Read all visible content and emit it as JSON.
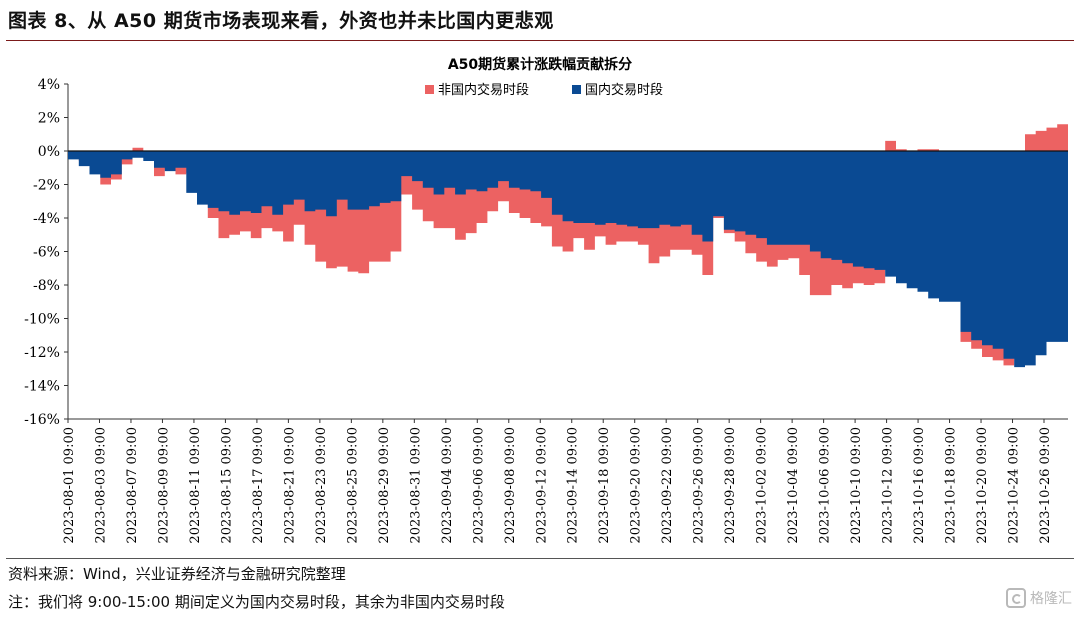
{
  "figure_title": "图表 8、从 A50 期货市场表现来看，外资也并未比国内更悲观",
  "source_note": "资料来源：Wind，兴业证券经济与金融研究院整理",
  "definition_note": "注：我们将 9:00-15:00 期间定义为国内交易时段，其余为非国内交易时段",
  "watermark": "格隆汇",
  "colors": {
    "non_domestic": "#ec6262",
    "domestic": "#0a4a93",
    "title_rule": "#7b1a1a"
  },
  "chart_data": {
    "type": "area",
    "title": "A50期货累计涨跌幅贡献拆分",
    "legend_position": "top-center",
    "ylim": [
      -16,
      4
    ],
    "yticks": [
      4,
      2,
      0,
      -2,
      -4,
      -6,
      -8,
      -10,
      -12,
      -14,
      -16
    ],
    "ytick_labels": [
      "4%",
      "2%",
      "0%",
      "-2%",
      "-4%",
      "-6%",
      "-8%",
      "-10%",
      "-12%",
      "-14%",
      "-16%"
    ],
    "xtick_labels": [
      "2023-08-01 09:00",
      "2023-08-03 09:00",
      "2023-08-07 09:00",
      "2023-08-09 09:00",
      "2023-08-11 09:00",
      "2023-08-15 09:00",
      "2023-08-17 09:00",
      "2023-08-21 09:00",
      "2023-08-23 09:00",
      "2023-08-25 09:00",
      "2023-08-29 09:00",
      "2023-08-31 09:00",
      "2023-09-04 09:00",
      "2023-09-06 09:00",
      "2023-09-08 09:00",
      "2023-09-12 09:00",
      "2023-09-14 09:00",
      "2023-09-18 09:00",
      "2023-09-20 09:00",
      "2023-09-22 09:00",
      "2023-09-26 09:00",
      "2023-09-28 09:00",
      "2023-10-02 09:00",
      "2023-10-04 09:00",
      "2023-10-06 09:00",
      "2023-10-10 09:00",
      "2023-10-12 09:00",
      "2023-10-16 09:00",
      "2023-10-18 09:00",
      "2023-10-20 09:00",
      "2023-10-24 09:00",
      "2023-10-26 09:00"
    ],
    "series": [
      {
        "name": "非国内交易时段",
        "values": [
          -0.3,
          -0.6,
          -1.2,
          -2.0,
          -1.7,
          -0.8,
          0.2,
          -0.4,
          -1.5,
          -1.1,
          -1.4,
          -1.3,
          -2.7,
          -4.0,
          -5.2,
          -5.0,
          -4.8,
          -5.2,
          -4.6,
          -4.8,
          -5.4,
          -4.4,
          -5.6,
          -6.6,
          -7.0,
          -6.9,
          -7.2,
          -7.3,
          -6.6,
          -6.6,
          -6.0,
          -2.6,
          -3.5,
          -4.2,
          -4.6,
          -4.6,
          -5.3,
          -4.9,
          -4.3,
          -3.6,
          -3.0,
          -3.7,
          -4.0,
          -4.3,
          -4.5,
          -5.7,
          -6.0,
          -5.2,
          -5.9,
          -5.1,
          -5.6,
          -5.4,
          -5.4,
          -5.6,
          -6.7,
          -6.3,
          -5.9,
          -5.9,
          -6.2,
          -7.4,
          -4.0,
          -4.9,
          -5.4,
          -6.1,
          -6.6,
          -6.9,
          -6.5,
          -6.4,
          -7.4,
          -8.6,
          -8.6,
          -8.0,
          -8.2,
          -7.9,
          -8.0,
          -7.9,
          0.6,
          0.1,
          0.0,
          0.1,
          0.1,
          -0.3,
          -0.4,
          -11.4,
          -11.8,
          -12.3,
          -12.5,
          -12.8,
          -12.0,
          1.0,
          1.2,
          1.4,
          1.6
        ],
        "color": "#ec6262"
      },
      {
        "name": "国内交易时段",
        "values": [
          -0.5,
          -0.9,
          -1.4,
          -1.6,
          -1.4,
          -0.5,
          -0.4,
          -0.6,
          -1.0,
          -1.2,
          -1.0,
          -2.5,
          -3.2,
          -3.4,
          -3.6,
          -3.8,
          -3.6,
          -3.7,
          -3.3,
          -3.8,
          -3.2,
          -2.9,
          -3.6,
          -3.5,
          -3.9,
          -2.9,
          -3.5,
          -3.5,
          -3.3,
          -3.1,
          -3.0,
          -1.5,
          -1.8,
          -2.2,
          -2.6,
          -2.2,
          -2.6,
          -2.3,
          -2.4,
          -2.2,
          -1.8,
          -2.2,
          -2.3,
          -2.4,
          -2.8,
          -3.8,
          -4.2,
          -4.3,
          -4.3,
          -4.4,
          -4.3,
          -4.4,
          -4.5,
          -4.6,
          -4.6,
          -4.4,
          -4.5,
          -4.4,
          -5.0,
          -5.4,
          -3.9,
          -4.7,
          -4.8,
          -5.0,
          -5.2,
          -5.6,
          -5.6,
          -5.6,
          -5.6,
          -6.0,
          -6.4,
          -6.5,
          -6.7,
          -6.9,
          -7.0,
          -7.1,
          -7.5,
          -7.9,
          -8.2,
          -8.4,
          -8.8,
          -9.0,
          -9.0,
          -10.8,
          -11.3,
          -11.6,
          -11.8,
          -12.4,
          -12.9,
          -12.8,
          -12.2,
          -11.4,
          -11.4
        ],
        "color": "#0a4a93"
      }
    ]
  }
}
